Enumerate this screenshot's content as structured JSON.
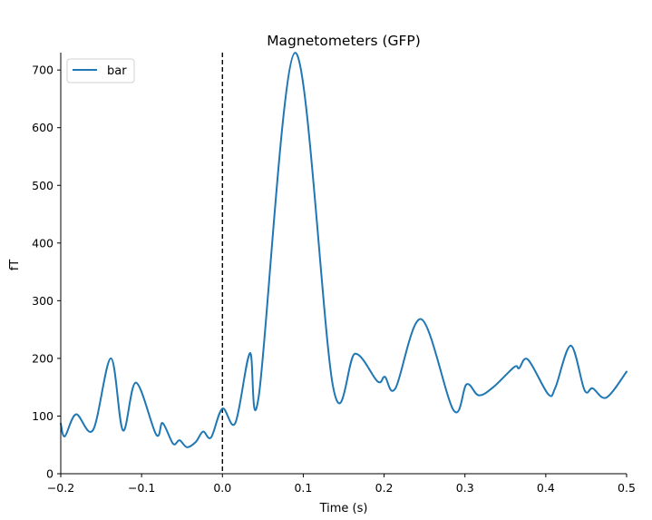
{
  "chart_data": {
    "type": "line",
    "title": "Magnetometers (GFP)",
    "xlabel": "Time (s)",
    "ylabel": "fT",
    "xlim": [
      -0.2,
      0.5
    ],
    "ylim": [
      0,
      730
    ],
    "xticks": [
      -0.2,
      -0.1,
      0.0,
      0.1,
      0.2,
      0.3,
      0.4,
      0.5
    ],
    "xtick_labels": [
      "−0.2",
      "−0.1",
      "0.0",
      "0.1",
      "0.2",
      "0.3",
      "0.4",
      "0.5"
    ],
    "yticks": [
      0,
      100,
      200,
      300,
      400,
      500,
      600,
      700
    ],
    "ytick_labels": [
      "0",
      "100",
      "200",
      "300",
      "400",
      "500",
      "600",
      "700"
    ],
    "grid": false,
    "legend": {
      "position": "upper left",
      "entries": [
        "bar"
      ]
    },
    "annotations": [
      {
        "type": "vline",
        "x": 0.0,
        "style": "dashed",
        "color": "#000000"
      }
    ],
    "series": [
      {
        "name": "bar",
        "color": "#1f77b4",
        "x": [
          -0.2,
          -0.195,
          -0.181,
          -0.16,
          -0.138,
          -0.123,
          -0.107,
          -0.082,
          -0.074,
          -0.061,
          -0.053,
          -0.044,
          -0.033,
          -0.024,
          -0.014,
          0.0,
          0.016,
          0.034,
          0.045,
          0.09,
          0.137,
          0.164,
          0.192,
          0.201,
          0.214,
          0.246,
          0.286,
          0.302,
          0.317,
          0.335,
          0.361,
          0.367,
          0.378,
          0.403,
          0.412,
          0.431,
          0.448,
          0.458,
          0.475,
          0.5
        ],
        "values": [
          87,
          65,
          103,
          76,
          200,
          75,
          158,
          68,
          88,
          52,
          58,
          46,
          55,
          73,
          63,
          113,
          88,
          209,
          135,
          730,
          150,
          208,
          160,
          168,
          148,
          268,
          110,
          155,
          136,
          150,
          185,
          183,
          198,
          138,
          150,
          222,
          145,
          148,
          132,
          177
        ]
      }
    ]
  }
}
